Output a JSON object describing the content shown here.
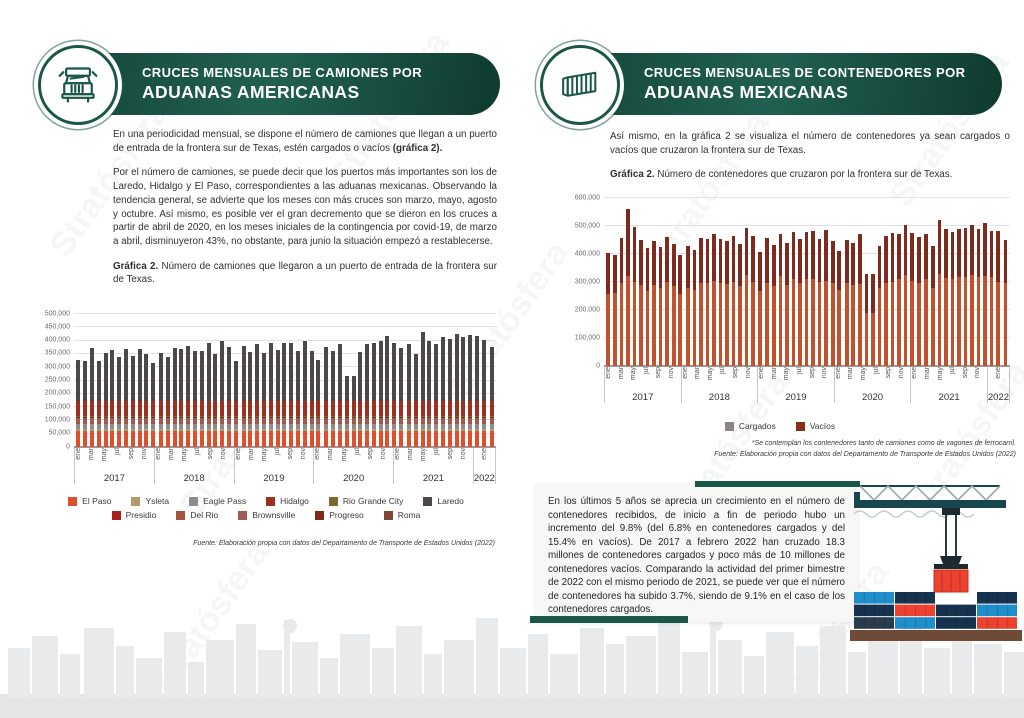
{
  "page": {
    "watermark_text": "Stratósfera"
  },
  "left_panel": {
    "header": {
      "line1": "CRUCES MENSUALES DE CAMIONES POR",
      "line2": "ADUANAS AMERICANAS",
      "icon": "truck-icon"
    },
    "p1": "En una periodicidad mensual, se dispone el número de camiones que llegan a un puerto de entrada de la frontera sur de Texas, estén cargados o vacíos ",
    "p1_bold": "(gráfica 2).",
    "p2": "Por el número de camiones, se puede decir que los puertos más importantes son los de Laredo, Hidalgo y El Paso, correspondientes a las aduanas mexicanas. Observando la tendencia general, se advierte que los meses con más cruces son marzo, mayo, agosto y octubre. Así mismo, es posible ver el gran decremento que se dieron en los cruces a partir de abril de 2020, en los meses iniciales de la contingencia por covid-19, de marzo a abril, disminuyeron 43%, no obstante, para junio la situación empezó a restablecerse.",
    "caption_bold": "Gráfica 2.",
    "caption_text": " Número de camiones que llegaron a un puerto de entrada de la frontera sur de Texas.",
    "source": "Fuente: Elaboración propia con datos del Departamento de Transporte de Estados Unidos (2022)"
  },
  "right_panel": {
    "header": {
      "line1": "CRUCES MENSUALES DE CONTENEDORES POR",
      "line2": "ADUANAS MEXICANAS",
      "icon": "container-icon"
    },
    "p1": "Así mismo, en la gráfica 2 se visualiza el número de contenedores ya sean cargados o vacíos que cruzaron la frontera sur de Texas.",
    "caption_bold": "Gráfica 2.",
    "caption_text": " Número de contenedores que cruzaron por la frontera sur de Texas.",
    "note1": "*Se contemplan los contenedores tanto de camiones como de vagones de ferrocarril.",
    "note2": "Fuente: Elaboración propia con datos del Departamento de Transporte de Estados Unidos (2022)",
    "infobox_text": "En los últimos 5 años se aprecia un crecimiento en el número de contenedores recibidos, de inicio a fin de periodo hubo un incremento del 9.8% (del 6.8% en contenedores cargados y del 15.4% en vacíos). De 2017 a febrero 2022 han cruzado 18.3 millones de contenedores cargados y poco más de 10 millones de contenedores vacíos. Comparando la actividad del primer bimestre de 2022 con el mismo periodo de 2021, se puede ver que el número de contenedores ha subido 3.7%, siendo de 9.1% en el caso de los contenedores cargados."
  },
  "chart_data": [
    {
      "type": "bar",
      "stacked": true,
      "title": "Gráfica 2. Número de camiones que llegaron a un puerto de entrada de la frontera sur de Texas",
      "xlabel": "",
      "ylabel": "",
      "ylim": [
        0,
        500000
      ],
      "ytick_step": 50000,
      "grid": true,
      "legend_position": "bottom",
      "month_labels": [
        "ene",
        "feb",
        "mar",
        "abr",
        "may",
        "jun",
        "jul",
        "ago",
        "sep",
        "oct",
        "nov",
        "dic"
      ],
      "years": [
        {
          "label": "2017",
          "months": 12
        },
        {
          "label": "2018",
          "months": 12
        },
        {
          "label": "2019",
          "months": 12
        },
        {
          "label": "2020",
          "months": 12
        },
        {
          "label": "2021",
          "months": 12
        },
        {
          "label": "2022",
          "months": 1
        }
      ],
      "totals_by_month": [
        328000,
        322000,
        373000,
        325000,
        352000,
        364000,
        338000,
        368000,
        344000,
        369000,
        350000,
        316000,
        353000,
        339000,
        371000,
        370000,
        381000,
        363000,
        360000,
        390000,
        350000,
        398000,
        375000,
        322000,
        379000,
        357000,
        389000,
        352000,
        390000,
        364000,
        391000,
        390000,
        362000,
        398000,
        360000,
        328000,
        376000,
        360000,
        387000,
        268000,
        267000,
        359000,
        387000,
        392000,
        399000,
        417000,
        392000,
        373000,
        386000,
        350000,
        432000,
        400000,
        387000,
        415000,
        407000,
        424000,
        412000,
        422000,
        418000,
        403000,
        378000
      ],
      "series_legend": [
        {
          "name": "El Paso",
          "color": "#E04F2B"
        },
        {
          "name": "Ysleta",
          "color": "#B09A6F"
        },
        {
          "name": "Eagle Pass",
          "color": "#8E8C8C"
        },
        {
          "name": "Hidalgo",
          "color": "#9C3120"
        },
        {
          "name": "Rio Grande City",
          "color": "#7C6A33"
        },
        {
          "name": "Laredo",
          "color": "#4C484A"
        },
        {
          "name": "Presidio",
          "color": "#A8201E"
        },
        {
          "name": "Del Rio",
          "color": "#A3573C"
        },
        {
          "name": "Brownsville",
          "color": "#9E5A55"
        },
        {
          "name": "Progreso",
          "color": "#7E2B17"
        },
        {
          "name": "Roma",
          "color": "#7E4737"
        }
      ],
      "stack_bottom_to_top": [
        {
          "name": "El Paso",
          "approx_monthly_value": 60000
        },
        {
          "name": "Ysleta",
          "approx_monthly_value": 8000
        },
        {
          "name": "Eagle Pass",
          "approx_monthly_value": 20000
        },
        {
          "name": "Del Rio",
          "approx_monthly_value": 6000
        },
        {
          "name": "Brownsville",
          "approx_monthly_value": 14000
        },
        {
          "name": "Presidio",
          "approx_monthly_value": 1500
        },
        {
          "name": "Progreso",
          "approx_monthly_value": 3000
        },
        {
          "name": "Roma",
          "approx_monthly_value": 2000
        },
        {
          "name": "Rio Grande City",
          "approx_monthly_value": 2500
        },
        {
          "name": "Hidalgo",
          "approx_monthly_value": 55000
        },
        {
          "name": "Laredo",
          "remainder": true
        }
      ]
    },
    {
      "type": "bar",
      "stacked": true,
      "title": "Gráfica 2. Número de contenedores que cruzaron por la frontera sur de Texas",
      "xlabel": "",
      "ylabel": "",
      "ylim": [
        0,
        600000
      ],
      "ytick_step": 100000,
      "grid": true,
      "legend_position": "bottom",
      "month_labels": [
        "ene",
        "feb",
        "mar",
        "abr",
        "may",
        "jun",
        "jul",
        "ago",
        "sep",
        "oct",
        "nov",
        "dic"
      ],
      "years": [
        {
          "label": "2017",
          "months": 12
        },
        {
          "label": "2018",
          "months": 12
        },
        {
          "label": "2019",
          "months": 12
        },
        {
          "label": "2020",
          "months": 12
        },
        {
          "label": "2021",
          "months": 12
        },
        {
          "label": "2022",
          "months": 1
        }
      ],
      "series": [
        {
          "name": "Cargados",
          "legend_color": "#8C8585",
          "bar_color": "#C2512E",
          "values": [
            258000,
            262000,
            298000,
            320000,
            300000,
            290000,
            268000,
            290000,
            278000,
            300000,
            285000,
            258000,
            280000,
            272000,
            298000,
            296000,
            305000,
            296000,
            292000,
            300000,
            285000,
            325000,
            300000,
            268000,
            298000,
            285000,
            322000,
            290000,
            310000,
            295000,
            310000,
            312000,
            300000,
            302000,
            295000,
            270000,
            295000,
            290000,
            292000,
            190000,
            188000,
            280000,
            295000,
            300000,
            310000,
            325000,
            305000,
            295000,
            310000,
            280000,
            330000,
            315000,
            310000,
            318000,
            318000,
            325000,
            318000,
            320000,
            318000,
            300000,
            298000
          ]
        },
        {
          "name": "Vacíos",
          "legend_color": "#8A2E1A",
          "bar_color": "#7D2A1F",
          "values": [
            144000,
            134000,
            158000,
            240000,
            197000,
            160000,
            152000,
            158000,
            146000,
            159000,
            149000,
            137000,
            148000,
            144000,
            159000,
            159000,
            165000,
            159000,
            153000,
            165000,
            152000,
            168000,
            164000,
            139000,
            158000,
            148000,
            151000,
            150000,
            170000,
            157000,
            170000,
            170000,
            153000,
            185000,
            153000,
            140000,
            155000,
            151000,
            179000,
            140000,
            140000,
            148000,
            170000,
            175000,
            163000,
            180000,
            170000,
            165000,
            163000,
            148000,
            190000,
            173000,
            167000,
            172000,
            175000,
            180000,
            172000,
            191000,
            166000,
            183000,
            152000
          ]
        }
      ]
    }
  ]
}
